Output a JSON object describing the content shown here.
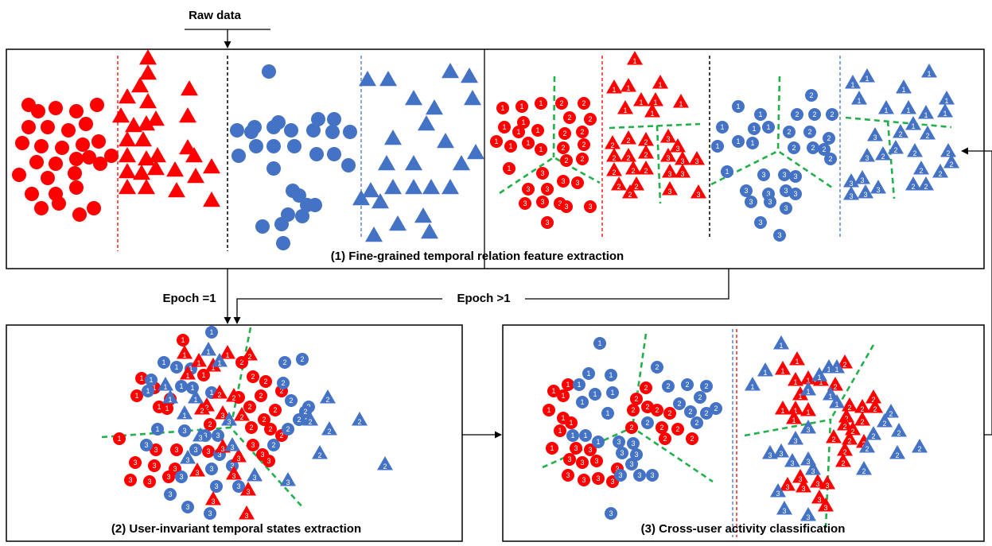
{
  "labels": {
    "raw_data": "Raw data",
    "epoch_eq_1": "Epoch =1",
    "epoch_gt_1": "Epoch >1",
    "panel1": "(1) Fine-grained temporal relation feature extraction",
    "panel2": "(2) User-invariant temporal states extraction",
    "panel3": "(3) Cross-user activity classification"
  },
  "colors": {
    "red": "#ff0000",
    "blue": "#4472c4",
    "green_boundary": "#22b04b",
    "red_divider": "#ff0000",
    "blue_divider": "#4472c4",
    "black_divider": "#000000"
  },
  "legend_groups": [
    "red-circle",
    "red-triangle",
    "blue-circle",
    "blue-triangle"
  ],
  "cluster_numbers": [
    "1",
    "2",
    "3"
  ]
}
